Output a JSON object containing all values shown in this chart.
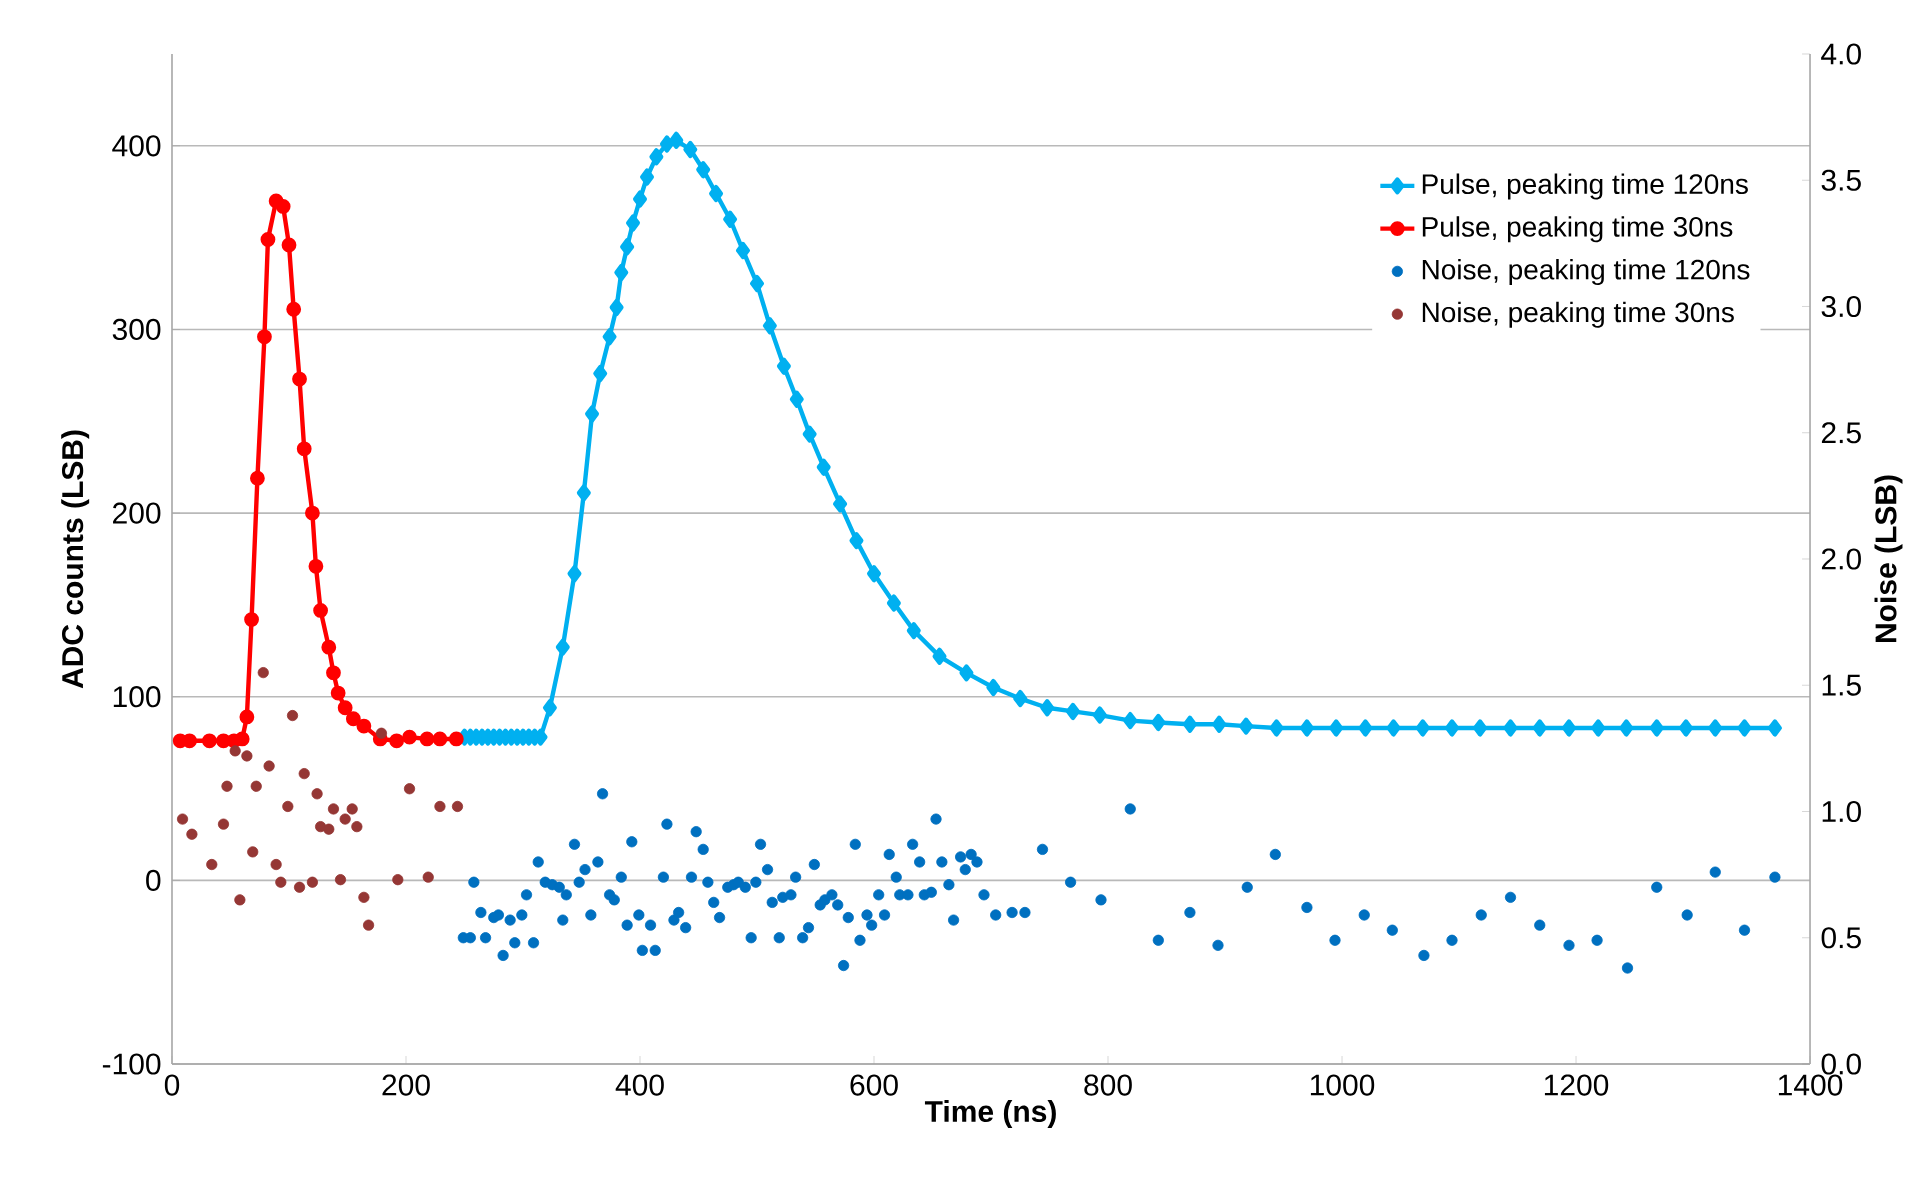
{
  "chart_data": {
    "type": "line",
    "xlabel": "Time (ns)",
    "ylabel": "ADC counts (LSB)",
    "y2label": "Noise (LSB)",
    "xlim": [
      0,
      1400
    ],
    "xticks": [
      0,
      200,
      400,
      600,
      800,
      1000,
      1200,
      1400
    ],
    "ylim": [
      -100,
      450
    ],
    "yticks": [
      -100,
      0,
      100,
      200,
      300,
      400
    ],
    "y2lim": [
      0,
      4.0
    ],
    "y2ticks": [
      {
        "value": 0,
        "label": "0.0"
      },
      {
        "value": 0.5,
        "label": "0.5"
      },
      {
        "value": 1.0,
        "label": "1.0"
      },
      {
        "value": 1.5,
        "label": "1.5"
      },
      {
        "value": 2.0,
        "label": "2.0"
      },
      {
        "value": 2.5,
        "label": "2.5"
      },
      {
        "value": 3.0,
        "label": "3.0"
      },
      {
        "value": 3.5,
        "label": "3.5"
      },
      {
        "value": 4.0,
        "label": "4.0"
      }
    ],
    "grid": "y",
    "legend": "top right",
    "series": [
      {
        "name": "Pulse, peaking time 120ns",
        "marker": "diamond",
        "color": "#00b0f0",
        "x": [
          250,
          255,
          260,
          265,
          270,
          275,
          280,
          285,
          290,
          295,
          300,
          305,
          310,
          315,
          323,
          334,
          344,
          352,
          359,
          366,
          374,
          380,
          384,
          389,
          394,
          400,
          406,
          414,
          423,
          431,
          443,
          454,
          465,
          477,
          488,
          500,
          511,
          523,
          534,
          545,
          557,
          571,
          585,
          600,
          617,
          634,
          656,
          679,
          702,
          725,
          748,
          770,
          793,
          819,
          843,
          870,
          895,
          918,
          944,
          970,
          995,
          1020,
          1044,
          1069,
          1094,
          1118,
          1144,
          1169,
          1194,
          1219,
          1243,
          1269,
          1294,
          1319,
          1344,
          1370
        ],
        "values": [
          78,
          78,
          78,
          78,
          78,
          78,
          78,
          78,
          78,
          78,
          78,
          78,
          78,
          78,
          94,
          127,
          167,
          211,
          254,
          276,
          296,
          312,
          331,
          345,
          358,
          371,
          383,
          394,
          401,
          403,
          398,
          387,
          374,
          360,
          343,
          325,
          302,
          280,
          262,
          243,
          225,
          205,
          185,
          167,
          151,
          136,
          122,
          113,
          105,
          99,
          94,
          92,
          90,
          87,
          86,
          85,
          85,
          84,
          83,
          83,
          83,
          83,
          83,
          83,
          83,
          83,
          83,
          83,
          83,
          83,
          83,
          83,
          83,
          83,
          83,
          83
        ]
      },
      {
        "name": "Pulse, peaking time 30ns",
        "marker": "circle",
        "color": "#ff0000",
        "x": [
          7,
          15,
          32,
          44,
          53,
          60,
          64,
          68,
          73,
          79,
          82,
          89,
          95,
          100,
          104,
          109,
          113,
          120,
          123,
          127,
          134,
          138,
          142,
          148,
          155,
          164,
          178,
          192,
          203,
          218,
          229,
          243
        ],
        "values": [
          76,
          76,
          76,
          76,
          76,
          77,
          89,
          142,
          219,
          296,
          349,
          370,
          367,
          346,
          311,
          273,
          235,
          200,
          171,
          147,
          127,
          113,
          102,
          94,
          88,
          84,
          77,
          76,
          78,
          77,
          77,
          77
        ]
      },
      {
        "name": "Noise, peaking time 120ns",
        "type": "scatter",
        "marker": "circle",
        "axis": "y2",
        "color": "#0070c0",
        "x": [
          249,
          255,
          258,
          264,
          268,
          275,
          279,
          283,
          289,
          293,
          299,
          303,
          309,
          313,
          319,
          325,
          331,
          334,
          337,
          344,
          348,
          353,
          358,
          364,
          368,
          374,
          378,
          384,
          389,
          393,
          399,
          402,
          409,
          413,
          420,
          423,
          429,
          433,
          439,
          444,
          448,
          454,
          458,
          463,
          468,
          475,
          480,
          484,
          490,
          495,
          499,
          503,
          509,
          513,
          519,
          522,
          529,
          533,
          539,
          544,
          549,
          554,
          558,
          564,
          569,
          574,
          578,
          584,
          588,
          594,
          598,
          604,
          609,
          613,
          619,
          622,
          629,
          633,
          639,
          643,
          649,
          653,
          658,
          664,
          668,
          674,
          678,
          683,
          688,
          694,
          704,
          718,
          729,
          744,
          768,
          794,
          819,
          843,
          870,
          894,
          919,
          943,
          970,
          994,
          1019,
          1043,
          1070,
          1094,
          1119,
          1144,
          1169,
          1194,
          1218,
          1244,
          1269,
          1295,
          1319,
          1344,
          1370
        ],
        "values": [
          0.5,
          0.5,
          0.72,
          0.6,
          0.5,
          0.58,
          0.59,
          0.43,
          0.57,
          0.48,
          0.59,
          0.67,
          0.48,
          0.8,
          0.72,
          0.71,
          0.7,
          0.57,
          0.67,
          0.87,
          0.72,
          0.77,
          0.59,
          0.8,
          1.07,
          0.67,
          0.65,
          0.74,
          0.55,
          0.88,
          0.59,
          0.45,
          0.55,
          0.45,
          0.74,
          0.95,
          0.57,
          0.6,
          0.54,
          0.74,
          0.92,
          0.85,
          0.72,
          0.64,
          0.58,
          0.7,
          0.71,
          0.72,
          0.7,
          0.5,
          0.72,
          0.87,
          0.77,
          0.64,
          0.5,
          0.66,
          0.67,
          0.74,
          0.5,
          0.54,
          0.79,
          0.63,
          0.65,
          0.67,
          0.63,
          0.39,
          0.58,
          0.87,
          0.49,
          0.59,
          0.55,
          0.67,
          0.59,
          0.83,
          0.74,
          0.67,
          0.67,
          0.87,
          0.8,
          0.67,
          0.68,
          0.97,
          0.8,
          0.71,
          0.57,
          0.82,
          0.77,
          0.83,
          0.8,
          0.67,
          0.59,
          0.6,
          0.6,
          0.85,
          0.72,
          0.65,
          1.01,
          0.49,
          0.6,
          0.47,
          0.7,
          0.83,
          0.62,
          0.49,
          0.59,
          0.53,
          0.43,
          0.49,
          0.59,
          0.66,
          0.55,
          0.47,
          0.49,
          0.38,
          0.7,
          0.59,
          0.76,
          0.53,
          0.74
        ]
      },
      {
        "name": "Noise, peaking time 30ns",
        "type": "scatter",
        "marker": "circle",
        "axis": "y2",
        "color": "#953735",
        "x": [
          9,
          17,
          34,
          44,
          47,
          54,
          58,
          64,
          69,
          72,
          78,
          83,
          89,
          93,
          99,
          103,
          109,
          113,
          120,
          124,
          127,
          134,
          138,
          144,
          148,
          154,
          158,
          164,
          168,
          179,
          193,
          203,
          219,
          229,
          244
        ],
        "values": [
          0.97,
          0.91,
          0.79,
          0.95,
          1.1,
          1.24,
          0.65,
          1.22,
          0.84,
          1.1,
          1.55,
          1.18,
          0.79,
          0.72,
          1.02,
          1.38,
          0.7,
          1.15,
          0.72,
          1.07,
          0.94,
          0.93,
          1.01,
          0.73,
          0.97,
          1.01,
          0.94,
          0.66,
          0.55,
          1.31,
          0.73,
          1.09,
          0.74,
          1.02,
          1.02
        ]
      }
    ]
  }
}
